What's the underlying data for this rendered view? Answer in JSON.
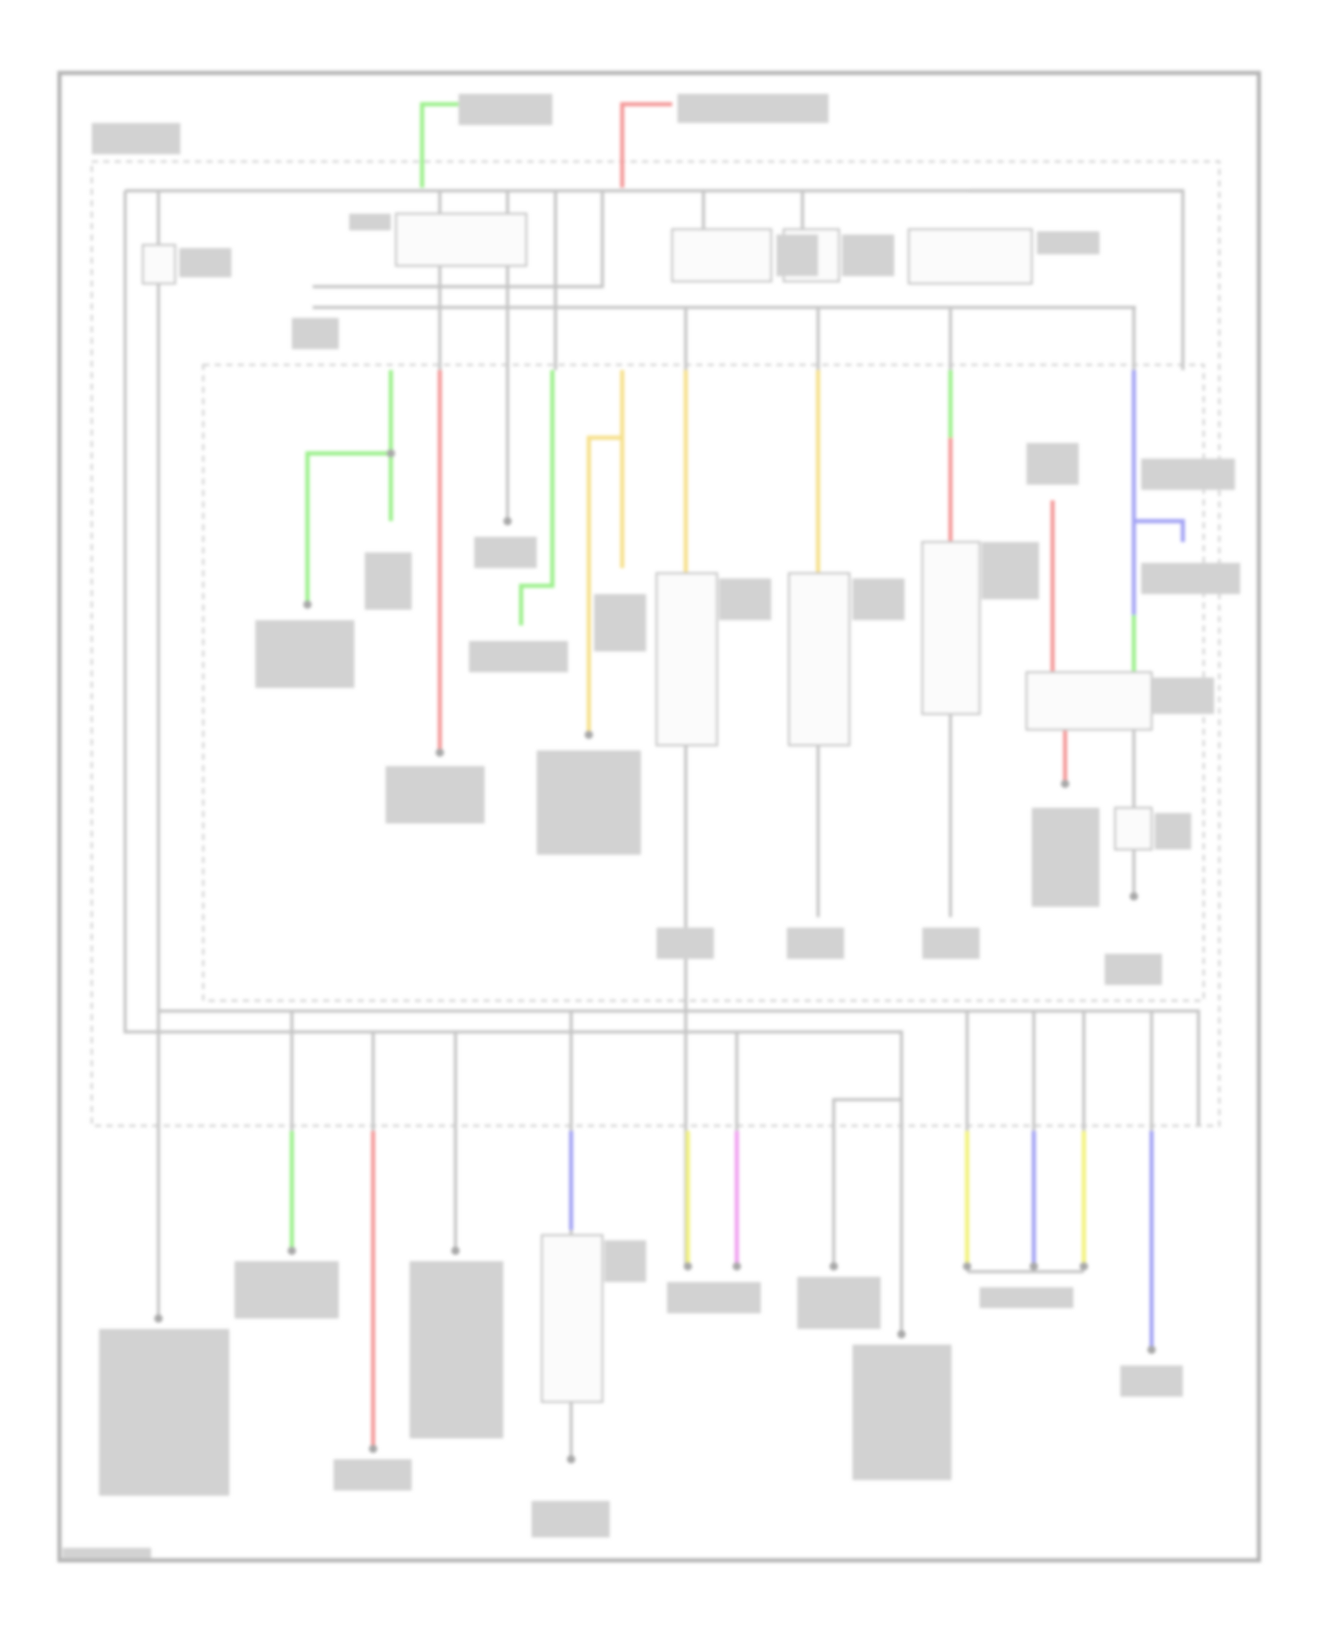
{
  "diagram": {
    "wire_colors": {
      "gray": "#c4c4c4",
      "green": "#9cf08c",
      "red": "#f49a9a",
      "yellow": "#f6e08c",
      "bright_yellow": "#f2f27a",
      "blue": "#a4a4f4",
      "magenta": "#f0a0f0"
    },
    "frame_color": "#b4b4b4"
  }
}
